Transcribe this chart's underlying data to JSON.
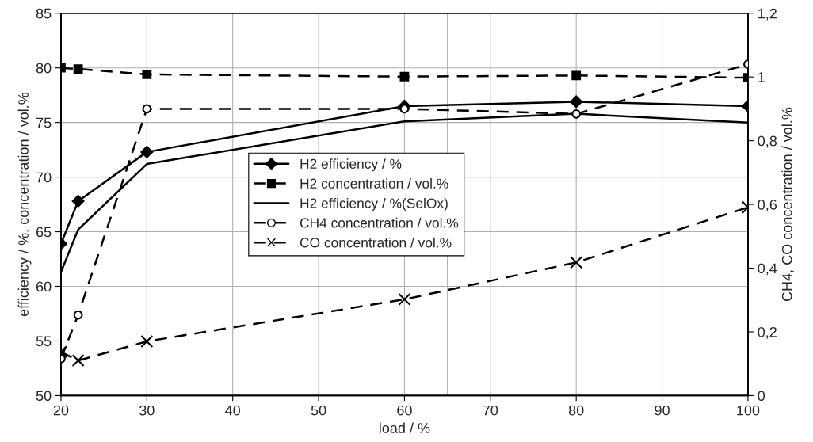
{
  "chart_data": {
    "type": "line",
    "xlabel": "load / %",
    "ylabel": "efficiency / %, concentration / vol.%",
    "y2label": "CH4, CO concentration / vol.%",
    "x": [
      20,
      22,
      30,
      60,
      80,
      100
    ],
    "series": [
      {
        "name": "H2 efficiency / %",
        "color": "#000000",
        "marker": "diamond",
        "line_style": "solid",
        "values": [
          63.9,
          67.8,
          72.3,
          76.5,
          76.9,
          76.5
        ]
      },
      {
        "name": "H2 concentration / vol.%",
        "color": "#000000",
        "marker": "square",
        "line_style": "dashed",
        "values": [
          80.0,
          79.9,
          79.4,
          79.2,
          79.3,
          79.1
        ]
      },
      {
        "name": "H2 efficiency / %(SelOx)",
        "color": "#000000",
        "marker": "none",
        "line_style": "solid",
        "values": [
          61.3,
          65.2,
          71.2,
          75.1,
          75.8,
          75.0
        ]
      },
      {
        "name": "CH4 concentration / vol.%",
        "color": "#000000",
        "marker": "circle",
        "line_style": "dashed",
        "axis": "y2",
        "values": [
          0.116,
          0.253,
          0.9,
          0.9,
          0.884,
          1.04
        ]
      },
      {
        "name": "CO concentration / vol.%",
        "color": "#000000",
        "marker": "cross",
        "line_style": "dashed",
        "axis": "y2",
        "values": [
          0.137,
          0.11,
          0.17,
          0.302,
          0.418,
          0.591
        ]
      }
    ],
    "xlim": [
      20,
      100
    ],
    "xticks": [
      20,
      30,
      40,
      50,
      60,
      70,
      80,
      90,
      100
    ],
    "ylim": [
      50,
      85
    ],
    "yticks": [
      50,
      55,
      60,
      65,
      70,
      75,
      80,
      85
    ],
    "y2lim": [
      0,
      1.2
    ],
    "y2ticks": [
      0,
      {
        "value": 0.2,
        "label": "0,2"
      },
      {
        "value": 0.4,
        "label": "0,4"
      },
      {
        "value": 0.6,
        "label": "0,6"
      },
      {
        "value": 0.8,
        "label": "0,8"
      },
      1,
      {
        "value": 1.2,
        "label": "1,2"
      }
    ],
    "ref_lines": [
      {
        "axis": "x",
        "value": 65,
        "color": "#b0b0b0",
        "line_style": "solid"
      }
    ],
    "grid": true,
    "legend": "center"
  }
}
